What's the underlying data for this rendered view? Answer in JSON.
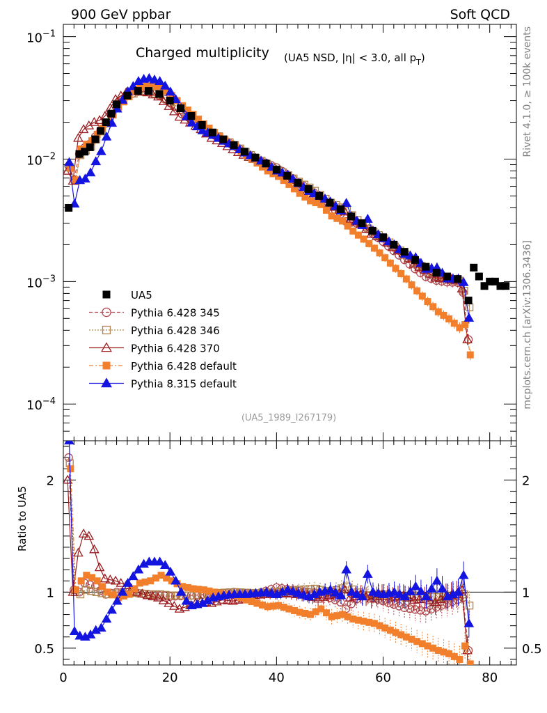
{
  "header": {
    "left": "900 GeV ppbar",
    "right": "Soft QCD"
  },
  "side_text": {
    "top": "Rivet 4.1.0, ≥ 100k events",
    "bottom": "mcplots.cern.ch [arXiv:1306.3436]"
  },
  "chart_data": {
    "type": "scatter",
    "title": "Charged multiplicity",
    "subtitle": "(UA5 NSD, |η| < 3.0, all p",
    "subtitle_sub": "T",
    "subtitle_end": ")",
    "watermark": "(UA5_1989_I267179)",
    "xlabel": "",
    "ylabel_ratio": "Ratio to UA5",
    "xlim": [
      0,
      85
    ],
    "ylim_main_log10": [
      -4.3,
      -0.9
    ],
    "ylim_ratio": [
      0.35,
      2.35
    ],
    "x_ticks": [
      "0",
      "20",
      "40",
      "60",
      "80"
    ],
    "y_ticks_main": [
      {
        "base": "10",
        "exp": "−1"
      },
      {
        "base": "10",
        "exp": "−2"
      },
      {
        "base": "10",
        "exp": "−3"
      },
      {
        "base": "10",
        "exp": "−4"
      }
    ],
    "y_ticks_ratio": [
      "2",
      "1",
      "0.5"
    ],
    "data_series": {
      "name": "UA5",
      "x": [
        1,
        3,
        4,
        5,
        6,
        7,
        8,
        9,
        10,
        12,
        14,
        16,
        18,
        20,
        22,
        24,
        26,
        28,
        30,
        32,
        34,
        36,
        38,
        40,
        42,
        44,
        46,
        48,
        50,
        52,
        54,
        56,
        58,
        60,
        62,
        64,
        66,
        68,
        70,
        72,
        74,
        76,
        77,
        78,
        79,
        80,
        81,
        82,
        83
      ],
      "y": [
        0.004,
        0.011,
        0.0115,
        0.0125,
        0.0145,
        0.017,
        0.02,
        0.0235,
        0.028,
        0.033,
        0.036,
        0.036,
        0.034,
        0.03,
        0.026,
        0.0225,
        0.019,
        0.0165,
        0.0145,
        0.013,
        0.0115,
        0.0103,
        0.0092,
        0.0082,
        0.0073,
        0.0064,
        0.0057,
        0.005,
        0.0044,
        0.0039,
        0.0034,
        0.003,
        0.0026,
        0.0023,
        0.002,
        0.00175,
        0.0015,
        0.00132,
        0.00118,
        0.0011,
        0.00105,
        0.0007,
        0.0013,
        0.0011,
        0.00092,
        0.001,
        0.001,
        0.00092,
        0.00092
      ]
    },
    "mc_series": [
      {
        "name": "Pythia 6.428 345",
        "color": "#b0484f",
        "marker": "circle-open",
        "line": "dashed",
        "shift": 0.0,
        "ratio": [
          [
            1,
            2.2
          ],
          [
            2,
            1.02
          ],
          [
            3,
            1.0
          ],
          [
            4,
            1.08
          ],
          [
            6,
            1.05
          ],
          [
            8,
            0.98
          ],
          [
            10,
            1.0
          ],
          [
            12,
            1.0
          ],
          [
            14,
            0.99
          ],
          [
            16,
            0.98
          ],
          [
            18,
            0.97
          ],
          [
            20,
            0.96
          ],
          [
            24,
            0.97
          ],
          [
            28,
            0.98
          ],
          [
            32,
            1.0
          ],
          [
            36,
            0.98
          ],
          [
            40,
            1.04
          ],
          [
            44,
            1.01
          ],
          [
            48,
            0.99
          ],
          [
            52,
            0.91
          ],
          [
            53,
            0.85
          ],
          [
            56,
            0.98
          ],
          [
            60,
            0.92
          ],
          [
            64,
            0.86
          ],
          [
            68,
            0.83
          ],
          [
            72,
            0.9
          ],
          [
            75,
            0.95
          ],
          [
            76,
            0.48
          ]
        ]
      },
      {
        "name": "Pythia 6.428 346",
        "color": "#b0824b",
        "marker": "square-open",
        "line": "dotted",
        "shift": 0.2,
        "ratio": [
          [
            1,
            2.15
          ],
          [
            2,
            1.0
          ],
          [
            3,
            0.98
          ],
          [
            4,
            1.02
          ],
          [
            6,
            1.0
          ],
          [
            8,
            0.98
          ],
          [
            10,
            0.99
          ],
          [
            12,
            1.0
          ],
          [
            14,
            0.99
          ],
          [
            16,
            0.98
          ],
          [
            18,
            0.98
          ],
          [
            20,
            0.97
          ],
          [
            24,
            0.97
          ],
          [
            28,
            0.99
          ],
          [
            32,
            1.0
          ],
          [
            36,
            0.99
          ],
          [
            40,
            1.0
          ],
          [
            44,
            1.02
          ],
          [
            47,
            1.03
          ],
          [
            50,
            1.0
          ],
          [
            53,
            1.05
          ],
          [
            56,
            0.97
          ],
          [
            60,
            0.98
          ],
          [
            64,
            0.95
          ],
          [
            68,
            0.96
          ],
          [
            72,
            0.95
          ],
          [
            75,
            0.98
          ],
          [
            76,
            0.88
          ]
        ]
      },
      {
        "name": "Pythia 6.428 370",
        "color": "#9b1b1f",
        "marker": "triangle-open",
        "line": "solid",
        "shift": -0.2,
        "ratio": [
          [
            1,
            2.0
          ],
          [
            2,
            1.0
          ],
          [
            3,
            1.35
          ],
          [
            4,
            1.52
          ],
          [
            5,
            1.5
          ],
          [
            6,
            1.38
          ],
          [
            7,
            1.22
          ],
          [
            8,
            1.12
          ],
          [
            10,
            1.1
          ],
          [
            12,
            1.06
          ],
          [
            14,
            1.0
          ],
          [
            16,
            0.97
          ],
          [
            18,
            0.95
          ],
          [
            20,
            0.9
          ],
          [
            22,
            0.85
          ],
          [
            24,
            0.88
          ],
          [
            26,
            0.92
          ],
          [
            28,
            0.9
          ],
          [
            30,
            0.93
          ],
          [
            32,
            0.92
          ],
          [
            34,
            0.94
          ],
          [
            36,
            0.97
          ],
          [
            38,
            0.98
          ],
          [
            40,
            0.98
          ],
          [
            42,
            0.99
          ],
          [
            44,
            0.98
          ],
          [
            46,
            0.97
          ],
          [
            48,
            0.94
          ],
          [
            50,
            0.97
          ],
          [
            52,
            0.99
          ],
          [
            53,
            1.02
          ],
          [
            54,
            0.95
          ],
          [
            56,
            0.98
          ],
          [
            58,
            0.94
          ],
          [
            60,
            0.98
          ],
          [
            62,
            0.95
          ],
          [
            64,
            0.97
          ],
          [
            66,
            0.93
          ],
          [
            68,
            0.94
          ],
          [
            70,
            0.91
          ],
          [
            72,
            0.96
          ],
          [
            74,
            0.98
          ],
          [
            75,
            1.02
          ],
          [
            76,
            0.48
          ]
        ]
      },
      {
        "name": "Pythia 6.428 default",
        "color": "#f27f2c",
        "marker": "square-filled",
        "line": "dashdot",
        "shift": 0.35,
        "ratio": [
          [
            1,
            2.1
          ],
          [
            2,
            1.02
          ],
          [
            3,
            1.1
          ],
          [
            4,
            1.15
          ],
          [
            5,
            1.13
          ],
          [
            6,
            1.1
          ],
          [
            7,
            1.05
          ],
          [
            8,
            1.0
          ],
          [
            10,
            0.95
          ],
          [
            12,
            0.98
          ],
          [
            14,
            1.08
          ],
          [
            16,
            1.1
          ],
          [
            18,
            1.15
          ],
          [
            20,
            1.1
          ],
          [
            22,
            1.05
          ],
          [
            24,
            1.03
          ],
          [
            26,
            1.02
          ],
          [
            28,
            1.0
          ],
          [
            30,
            0.98
          ],
          [
            32,
            0.97
          ],
          [
            34,
            0.93
          ],
          [
            36,
            0.9
          ],
          [
            38,
            0.87
          ],
          [
            40,
            0.88
          ],
          [
            42,
            0.85
          ],
          [
            44,
            0.82
          ],
          [
            46,
            0.8
          ],
          [
            48,
            0.85
          ],
          [
            50,
            0.78
          ],
          [
            52,
            0.8
          ],
          [
            54,
            0.76
          ],
          [
            56,
            0.74
          ],
          [
            58,
            0.72
          ],
          [
            60,
            0.68
          ],
          [
            62,
            0.64
          ],
          [
            64,
            0.6
          ],
          [
            66,
            0.56
          ],
          [
            68,
            0.52
          ],
          [
            70,
            0.48
          ],
          [
            72,
            0.45
          ],
          [
            74,
            0.4
          ],
          [
            75,
            0.52
          ],
          [
            76,
            0.36
          ]
        ]
      },
      {
        "name": "Pythia 8.315 default",
        "color": "#1414e0",
        "marker": "triangle-filled",
        "line": "solid",
        "shift": 0.1,
        "ratio": [
          [
            1,
            2.35
          ],
          [
            2,
            0.65
          ],
          [
            3,
            0.61
          ],
          [
            4,
            0.6
          ],
          [
            5,
            0.62
          ],
          [
            6,
            0.66
          ],
          [
            7,
            0.68
          ],
          [
            8,
            0.76
          ],
          [
            9,
            0.84
          ],
          [
            10,
            0.92
          ],
          [
            11,
            1.0
          ],
          [
            12,
            1.08
          ],
          [
            13,
            1.14
          ],
          [
            14,
            1.2
          ],
          [
            15,
            1.25
          ],
          [
            16,
            1.27
          ],
          [
            17,
            1.27
          ],
          [
            18,
            1.27
          ],
          [
            19,
            1.24
          ],
          [
            20,
            1.18
          ],
          [
            21,
            1.1
          ],
          [
            22,
            1.0
          ],
          [
            23,
            0.92
          ],
          [
            24,
            0.88
          ],
          [
            26,
            0.9
          ],
          [
            28,
            0.95
          ],
          [
            30,
            0.97
          ],
          [
            32,
            0.98
          ],
          [
            34,
            0.98
          ],
          [
            36,
            0.99
          ],
          [
            38,
            1.0
          ],
          [
            40,
            0.98
          ],
          [
            42,
            1.02
          ],
          [
            44,
            0.99
          ],
          [
            46,
            0.96
          ],
          [
            48,
            1.0
          ],
          [
            50,
            1.02
          ],
          [
            52,
            0.97
          ],
          [
            53,
            1.2
          ],
          [
            54,
            1.0
          ],
          [
            56,
            0.96
          ],
          [
            57,
            1.16
          ],
          [
            58,
            1.0
          ],
          [
            60,
            0.98
          ],
          [
            62,
            1.0
          ],
          [
            64,
            0.96
          ],
          [
            66,
            1.05
          ],
          [
            68,
            0.96
          ],
          [
            70,
            1.1
          ],
          [
            72,
            0.96
          ],
          [
            74,
            1.0
          ],
          [
            75,
            1.15
          ],
          [
            76,
            0.72
          ]
        ]
      }
    ],
    "legend_position": "lower-left"
  }
}
